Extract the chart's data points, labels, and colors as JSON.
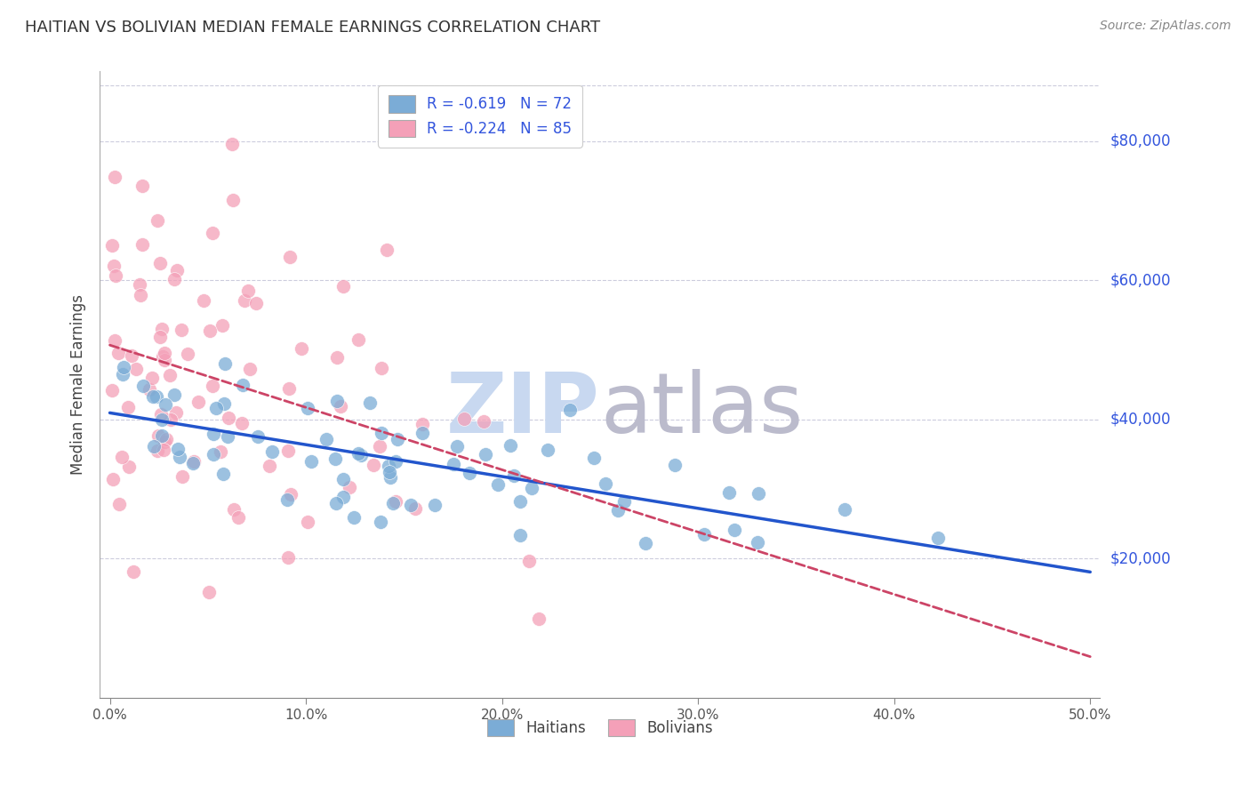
{
  "title": "HAITIAN VS BOLIVIAN MEDIAN FEMALE EARNINGS CORRELATION CHART",
  "source": "Source: ZipAtlas.com",
  "ylabel": "Median Female Earnings",
  "ytick_labels": [
    "$20,000",
    "$40,000",
    "$60,000",
    "$80,000"
  ],
  "ytick_values": [
    20000,
    40000,
    60000,
    80000
  ],
  "xlim": [
    -0.005,
    0.505
  ],
  "ylim": [
    0,
    90000
  ],
  "haitian_color": "#7BACD6",
  "bolivian_color": "#F4A0B8",
  "haitian_R": -0.619,
  "haitian_N": 72,
  "bolivian_R": -0.224,
  "bolivian_N": 85,
  "trend_blue_color": "#2255CC",
  "trend_pink_color": "#CC4466",
  "trend_dashed_color": "#CCCCDD",
  "watermark": "ZIPatlas",
  "watermark_blue": "ZIP",
  "watermark_gray": "atlas",
  "watermark_color_blue": "#C8D8F0",
  "watermark_color_gray": "#BBBBCC",
  "legend_label_1": "Haitians",
  "legend_label_2": "Bolivians",
  "background_color": "#FFFFFF",
  "grid_color": "#CCCCDD",
  "legend_R_color": "#3355DD",
  "legend_text_color": "#333344"
}
